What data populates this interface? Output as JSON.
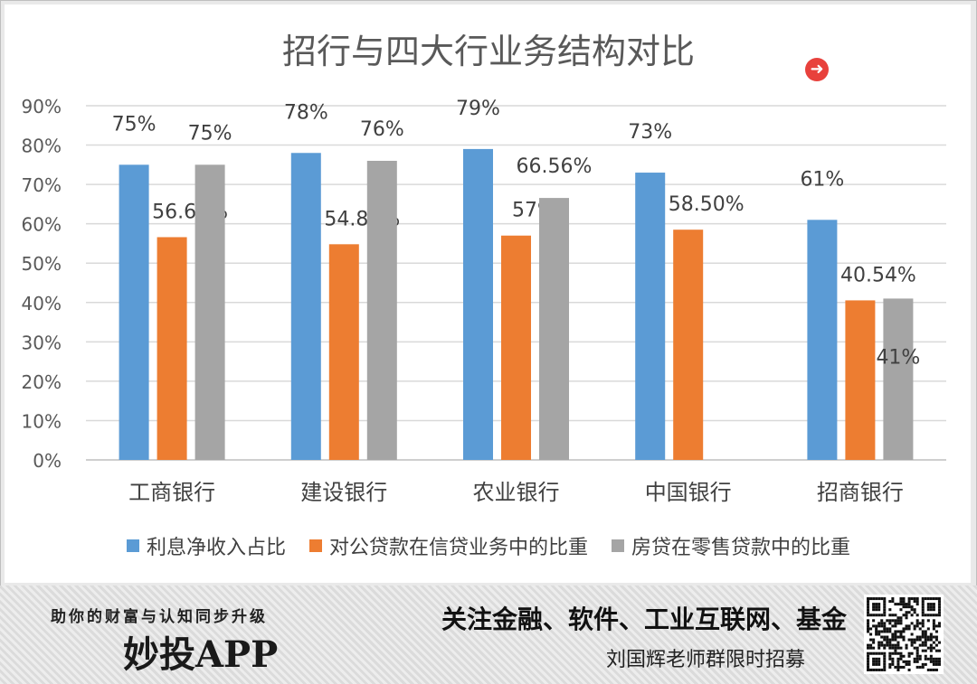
{
  "chart_data": {
    "type": "bar",
    "title": "招行与四大行业务结构对比",
    "categories": [
      "工商银行",
      "建设银行",
      "农业银行",
      "中国银行",
      "招商银行"
    ],
    "ylim": [
      0,
      90
    ],
    "yticks": [
      "0%",
      "10%",
      "20%",
      "30%",
      "40%",
      "50%",
      "60%",
      "70%",
      "80%",
      "90%"
    ],
    "grid": true,
    "legend_position": "bottom",
    "series": [
      {
        "name": "利息净收入占比",
        "color": "#5b9bd5",
        "values": [
          75,
          78,
          79,
          73,
          61
        ],
        "labels": [
          "75%",
          "78%",
          "79%",
          "73%",
          "61%"
        ]
      },
      {
        "name": "对公贷款在信贷业务中的比重",
        "color": "#ed7d31",
        "values": [
          56.6,
          54.8,
          57,
          58.5,
          40.54
        ],
        "labels": [
          "56.60%",
          "54.80%",
          "57%",
          "58.50%",
          "40.54%"
        ]
      },
      {
        "name": "房贷在零售贷款中的比重",
        "color": "#a5a5a5",
        "values": [
          75,
          76,
          66.56,
          null,
          41
        ],
        "labels": [
          "75%",
          "76%",
          "66.56%",
          null,
          "41%"
        ]
      }
    ]
  },
  "banner": {
    "tagline": "助你的财富与认知同步升级",
    "app_name": "妙投APP",
    "topics": "关注金融、软件、工业互联网、基金",
    "recruit": "刘国辉老师群限时招募",
    "arrow_icon": "arrow-right-circle-icon",
    "qr_icon": "qr-code-icon"
  }
}
